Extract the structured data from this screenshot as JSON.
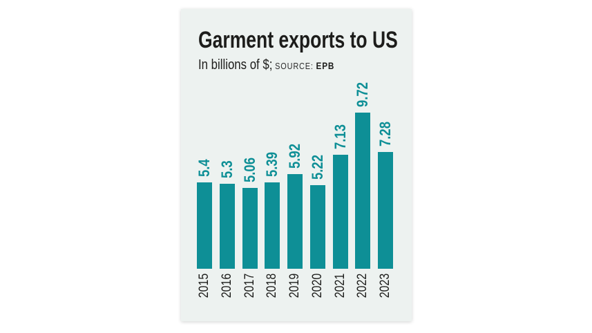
{
  "page": {
    "background": "#ffffff"
  },
  "card": {
    "background": "#edf2f0"
  },
  "header": {
    "title": "Garment exports to US",
    "subtitle_unit": "In billions of $;",
    "source_label": "SOURCE:",
    "source_value": "EPB"
  },
  "colors": {
    "bar": "#0e8f96",
    "value_label": "#0e8f96",
    "text_dark": "#1d1d1b"
  },
  "chart_data": {
    "type": "bar",
    "title": "Garment exports to US",
    "unit": "In billions of $",
    "source": "EPB",
    "categories": [
      "2015",
      "2016",
      "2017",
      "2018",
      "2019",
      "2020",
      "2021",
      "2022",
      "2023"
    ],
    "values": [
      5.4,
      5.3,
      5.06,
      5.39,
      5.92,
      5.22,
      7.13,
      9.72,
      7.28
    ],
    "value_labels": [
      "5.4",
      "5.3",
      "5.06",
      "5.39",
      "5.92",
      "5.22",
      "7.13",
      "9.72",
      "7.28"
    ],
    "ylim": [
      0,
      10
    ],
    "grid": false,
    "legend": false,
    "bar_color": "#0e8f96",
    "value_label_rotation_deg": 90,
    "category_label_rotation_deg": 90
  }
}
